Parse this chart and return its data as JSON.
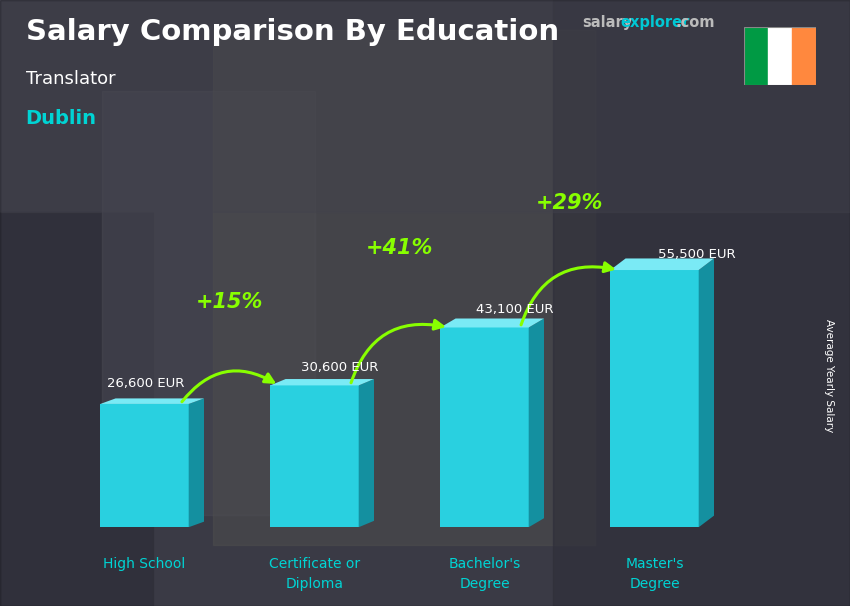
{
  "title": "Salary Comparison By Education",
  "subtitle": "Translator",
  "city": "Dublin",
  "ylabel": "Average Yearly Salary",
  "categories": [
    "High School",
    "Certificate or\nDiploma",
    "Bachelor's\nDegree",
    "Master's\nDegree"
  ],
  "values": [
    26600,
    30600,
    43100,
    55500
  ],
  "labels": [
    "26,600 EUR",
    "30,600 EUR",
    "43,100 EUR",
    "55,500 EUR"
  ],
  "pct_changes": [
    "+15%",
    "+41%",
    "+29%"
  ],
  "bar_color_face": "#29d0e0",
  "bar_color_dark": "#1490a0",
  "bar_color_top": "#7aeaf5",
  "bar_color_left": "#50dcea",
  "bar_width": 0.52,
  "bg_color": "#555566",
  "title_color": "#ffffff",
  "subtitle_color": "#ffffff",
  "city_color": "#00d4d4",
  "label_color": "#ffffff",
  "pct_color": "#88ff00",
  "arrow_color": "#88ff00",
  "cat_label_color": "#00d4d4",
  "flag_colors": [
    "#009A44",
    "#FFFFFF",
    "#FF883E"
  ],
  "ylim": [
    0,
    68000
  ],
  "site_color_salary": "#cccccc",
  "site_color_explorer": "#00bcd4",
  "bar_positions": [
    0,
    1,
    2,
    3
  ]
}
